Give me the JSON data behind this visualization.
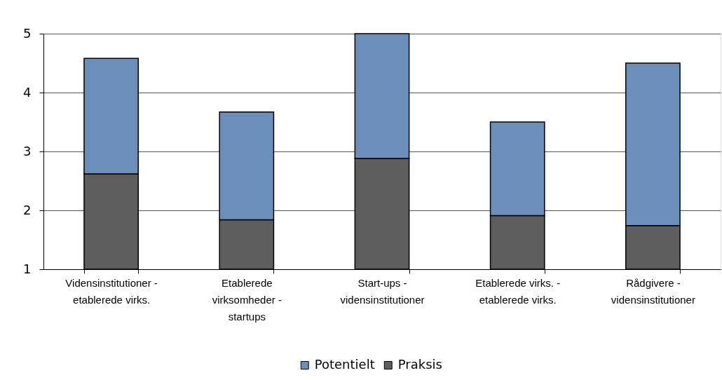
{
  "chart_data": {
    "type": "bar",
    "stacked": true,
    "categories": [
      "Vidensinstitutioner - etablerede virks.",
      "Etablerede virksomheder - startups",
      "Start-ups - vidensinstitutioner",
      "Etablerede virks. - etablerede virks.",
      "Rådgivere - vidensinstitutioner"
    ],
    "series": [
      {
        "name": "Praksis",
        "color": "#5e5e5e",
        "values": [
          2.62,
          1.84,
          2.88,
          1.91,
          1.74
        ]
      },
      {
        "name": "Potentielt",
        "color": "#6b8fb9",
        "values": [
          1.96,
          1.83,
          2.12,
          1.59,
          2.76
        ]
      }
    ],
    "ylim": [
      1,
      5
    ],
    "yticks": [
      1,
      2,
      3,
      4,
      5
    ],
    "grid": "y",
    "legend": "bottom"
  }
}
